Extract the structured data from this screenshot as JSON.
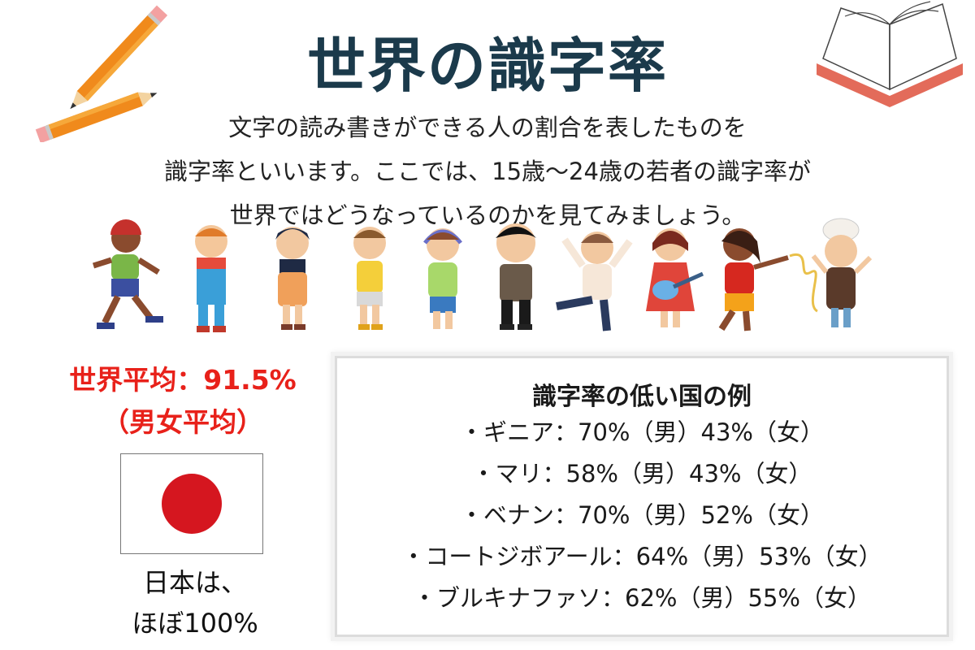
{
  "title": "世界の識字率",
  "intro_lines": [
    "文字の読み書きができる人の割合を表したものを",
    "識字率といいます。ここでは、15歳〜24歳の若者の識字率が",
    "世界ではどうなっているのかを見てみましょう。"
  ],
  "world_average": {
    "line1": "世界平均：91.5%",
    "line2": "（男女平均）"
  },
  "japan": {
    "line1": "日本は、",
    "line2": "ほぼ100%"
  },
  "low_countries": {
    "heading": "識字率の低い国の例",
    "items": [
      "・ギニア：70%（男）43%（女）",
      "・マリ：58%（男）43%（女）",
      "・ベナン：70%（男）52%（女）",
      "・コートジボアール：64%（男）53%（女）",
      "・ブルキナファソ：62%（男）55%（女）"
    ]
  },
  "colors": {
    "title": "#1b3a4b",
    "accent_red": "#e8211a",
    "flag_red": "#d5161f"
  },
  "icons": [
    "pencil-icon",
    "open-book-icon",
    "children-illustration",
    "japan-flag"
  ]
}
